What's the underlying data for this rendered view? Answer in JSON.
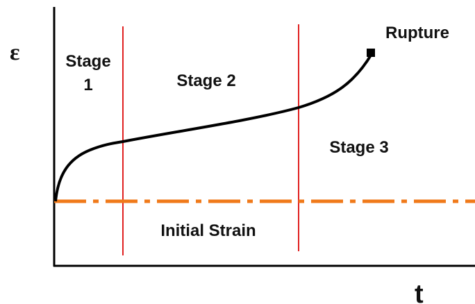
{
  "labels": {
    "y_axis": "ε",
    "x_axis": "t",
    "stage1": [
      "Stage",
      "1"
    ],
    "stage2": "Stage 2",
    "stage3": "Stage 3",
    "rupture": "Rupture",
    "initial_strain": "Initial Strain"
  }
}
